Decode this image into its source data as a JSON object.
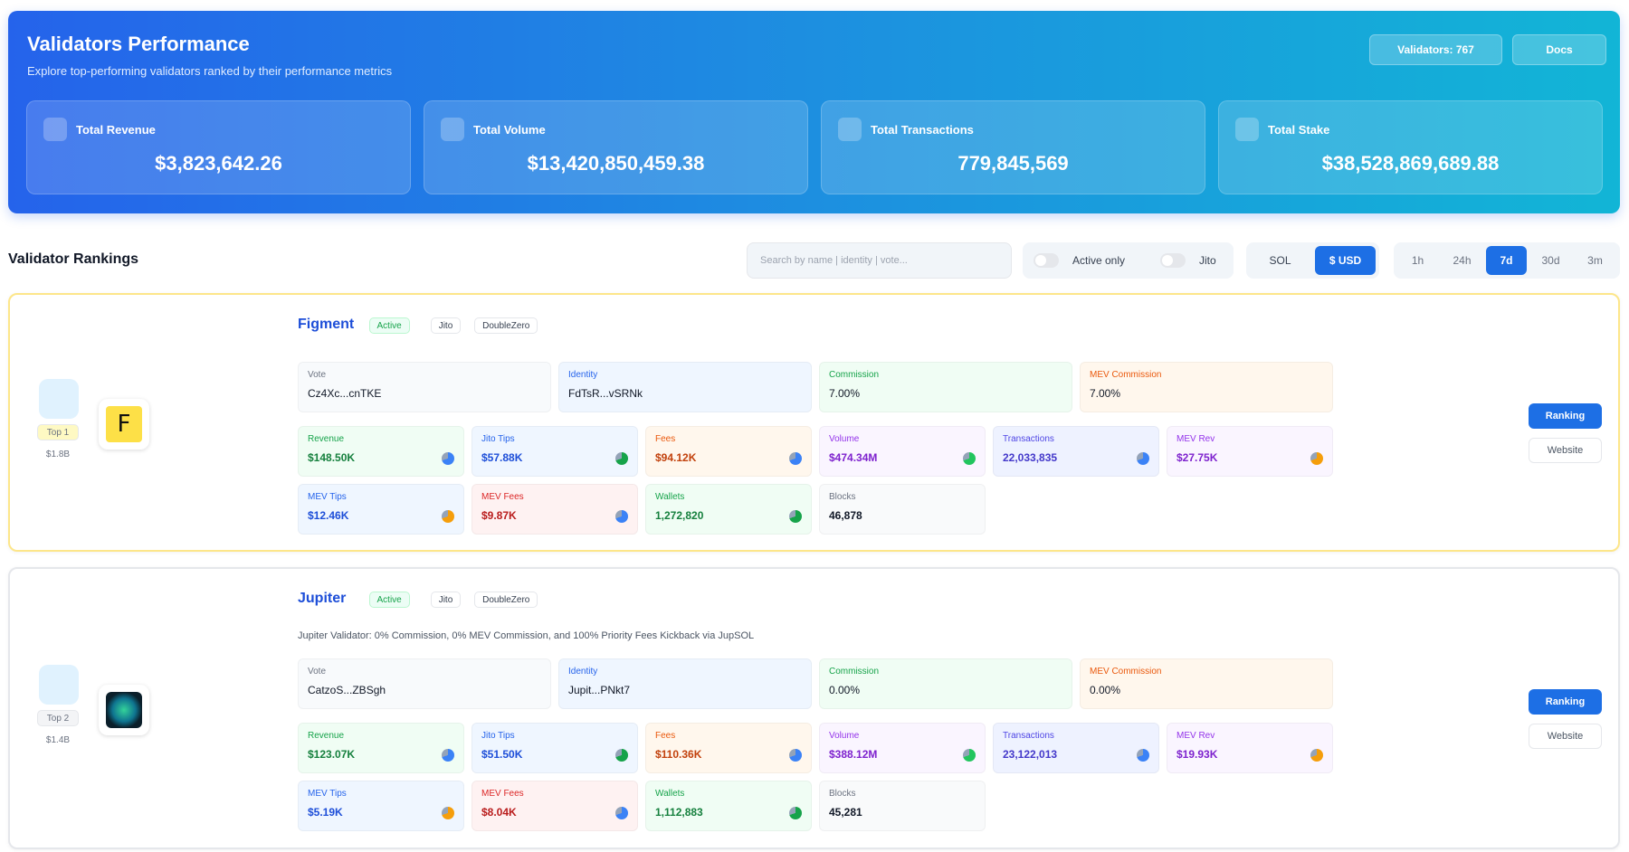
{
  "header": {
    "title": "Validators Performance",
    "subtitle": "Explore top-performing validators ranked by their performance metrics",
    "buttons": [
      "Validators: 767",
      "Docs"
    ]
  },
  "stats": [
    {
      "label": "Total Revenue",
      "value": "$3,823,642.26"
    },
    {
      "label": "Total Volume",
      "value": "$13,420,850,459.38"
    },
    {
      "label": "Total Transactions",
      "value": "779,845,569"
    },
    {
      "label": "Total Stake",
      "value": "$38,528,869,689.88"
    }
  ],
  "rankings": {
    "title": "Validator Rankings",
    "search_placeholder": "Search by name | identity | vote...",
    "toggles": [
      "Active only",
      "Jito"
    ],
    "currency": [
      "SOL",
      "$ USD"
    ],
    "currency_selected": 1,
    "timeframes": [
      "1h",
      "24h",
      "7d",
      "30d",
      "3m"
    ],
    "timeframe_selected": 2
  },
  "validators": [
    {
      "name": "Figment",
      "logo": "F",
      "tags": [
        "Active",
        "Jito",
        "DoubleZero"
      ],
      "rank": "Top 1",
      "stake": "$1.8B",
      "actions": [
        "Ranking",
        "Website"
      ],
      "fields": [
        {
          "label": "Vote",
          "value": "Cz4Xc...cnTKE"
        },
        {
          "label": "Identity",
          "value": "FdTsR...vSRNk"
        },
        {
          "label": "Commission",
          "value": "7.00%"
        },
        {
          "label": "MEV Commission",
          "value": "7.00%"
        }
      ],
      "metrics": [
        {
          "label": "Revenue",
          "value": "$148.50K"
        },
        {
          "label": "Jito Tips",
          "value": "$57.88K"
        },
        {
          "label": "Fees",
          "value": "$94.12K"
        },
        {
          "label": "Volume",
          "value": "$474.34M"
        },
        {
          "label": "Transactions",
          "value": "22,033,835"
        },
        {
          "label": "MEV Rev",
          "value": "$27.75K"
        },
        {
          "label": "MEV Tips",
          "value": "$12.46K"
        },
        {
          "label": "MEV Fees",
          "value": "$9.87K"
        },
        {
          "label": "Wallets",
          "value": "1,272,820"
        },
        {
          "label": "Blocks",
          "value": "46,878"
        }
      ]
    },
    {
      "name": "Jupiter",
      "tags": [
        "Active",
        "Jito",
        "DoubleZero"
      ],
      "description": "Jupiter Validator: 0% Commission, 0% MEV Commission, and 100% Priority Fees Kickback via JupSOL",
      "rank": "Top 2",
      "stake": "$1.4B",
      "actions": [
        "Ranking",
        "Website"
      ],
      "fields": [
        {
          "label": "Vote",
          "value": "CatzoS...ZBSgh"
        },
        {
          "label": "Identity",
          "value": "Jupit...PNkt7"
        },
        {
          "label": "Commission",
          "value": "0.00%"
        },
        {
          "label": "MEV Commission",
          "value": "0.00%"
        }
      ],
      "metrics": [
        {
          "label": "Revenue",
          "value": "$123.07K"
        },
        {
          "label": "Jito Tips",
          "value": "$51.50K"
        },
        {
          "label": "Fees",
          "value": "$110.36K"
        },
        {
          "label": "Volume",
          "value": "$388.12M"
        },
        {
          "label": "Transactions",
          "value": "23,122,013"
        },
        {
          "label": "MEV Rev",
          "value": "$19.93K"
        },
        {
          "label": "MEV Tips",
          "value": "$5.19K"
        },
        {
          "label": "MEV Fees",
          "value": "$8.04K"
        },
        {
          "label": "Wallets",
          "value": "1,112,883"
        },
        {
          "label": "Blocks",
          "value": "45,281"
        }
      ]
    }
  ]
}
